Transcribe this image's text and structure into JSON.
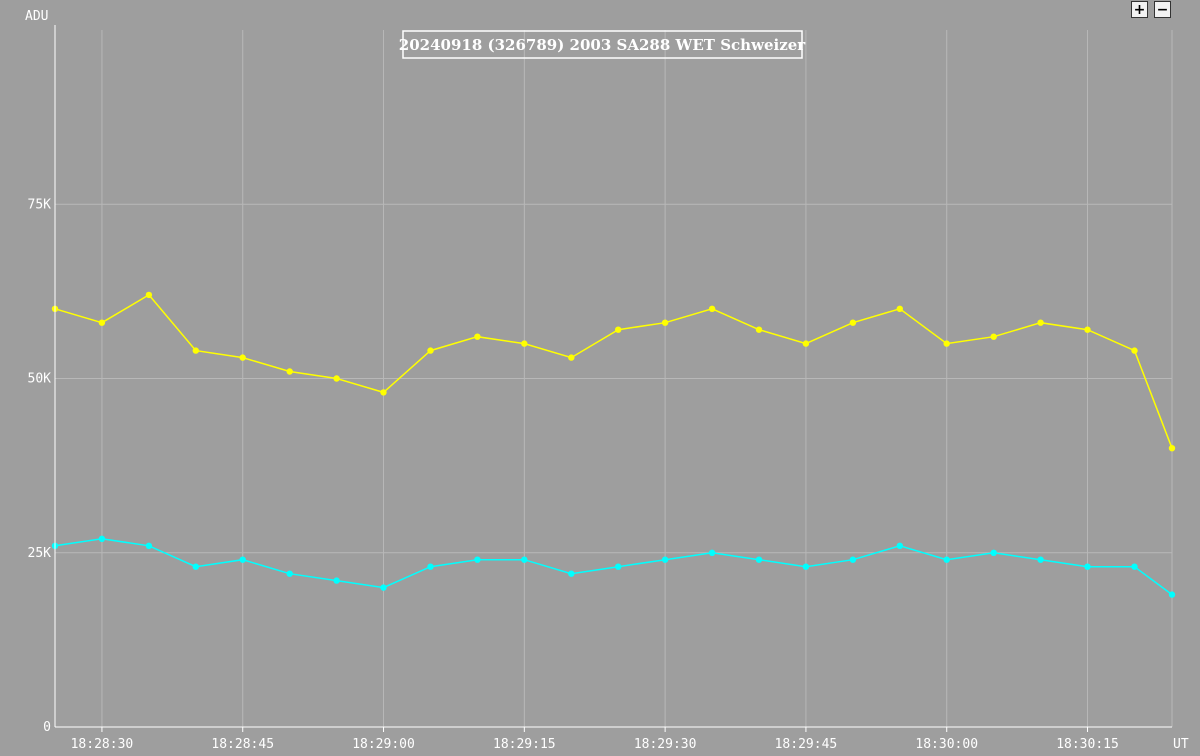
{
  "controls": {
    "zoom_in_label": "+",
    "zoom_out_label": "−"
  },
  "chart_data": {
    "type": "line",
    "title": "20240918 (326789) 2003 SA288 WET Schweizer",
    "ylabel": "ADU",
    "xlabel": "UT",
    "ylim": [
      0,
      100000
    ],
    "xlim": [
      "18:28:25",
      "18:30:24"
    ],
    "y_ticks": [
      {
        "value": 0,
        "label": "0"
      },
      {
        "value": 25000,
        "label": "25K"
      },
      {
        "value": 50000,
        "label": "50K"
      },
      {
        "value": 75000,
        "label": "75K"
      }
    ],
    "x_ticks": [
      "18:28:30",
      "18:28:45",
      "18:29:00",
      "18:29:15",
      "18:29:30",
      "18:29:45",
      "18:30:00",
      "18:30:15"
    ],
    "grid": true,
    "colors": {
      "background": "#9e9e9e",
      "grid": "#b8b8b8",
      "axis": "#ffffff"
    },
    "series": [
      {
        "color": "#ffff00",
        "x": [
          "18:28:25",
          "18:28:30",
          "18:28:35",
          "18:28:40",
          "18:28:45",
          "18:28:50",
          "18:28:55",
          "18:29:00",
          "18:29:05",
          "18:29:10",
          "18:29:15",
          "18:29:20",
          "18:29:25",
          "18:29:30",
          "18:29:35",
          "18:29:40",
          "18:29:45",
          "18:29:50",
          "18:29:55",
          "18:30:00",
          "18:30:05",
          "18:30:10",
          "18:30:15",
          "18:30:20",
          "18:30:24"
        ],
        "values": [
          60000,
          58000,
          62000,
          54000,
          53000,
          51000,
          50000,
          48000,
          54000,
          56000,
          55000,
          53000,
          57000,
          58000,
          60000,
          57000,
          55000,
          58000,
          60000,
          55000,
          56000,
          58000,
          57000,
          54000,
          40000
        ]
      },
      {
        "color": "#00ffff",
        "x": [
          "18:28:25",
          "18:28:30",
          "18:28:35",
          "18:28:40",
          "18:28:45",
          "18:28:50",
          "18:28:55",
          "18:29:00",
          "18:29:05",
          "18:29:10",
          "18:29:15",
          "18:29:20",
          "18:29:25",
          "18:29:30",
          "18:29:35",
          "18:29:40",
          "18:29:45",
          "18:29:50",
          "18:29:55",
          "18:30:00",
          "18:30:05",
          "18:30:10",
          "18:30:15",
          "18:30:20",
          "18:30:24"
        ],
        "values": [
          26000,
          27000,
          26000,
          23000,
          24000,
          22000,
          21000,
          20000,
          23000,
          24000,
          24000,
          22000,
          23000,
          24000,
          25000,
          24000,
          23000,
          24000,
          26000,
          24000,
          25000,
          24000,
          23000,
          23000,
          19000
        ]
      }
    ]
  }
}
